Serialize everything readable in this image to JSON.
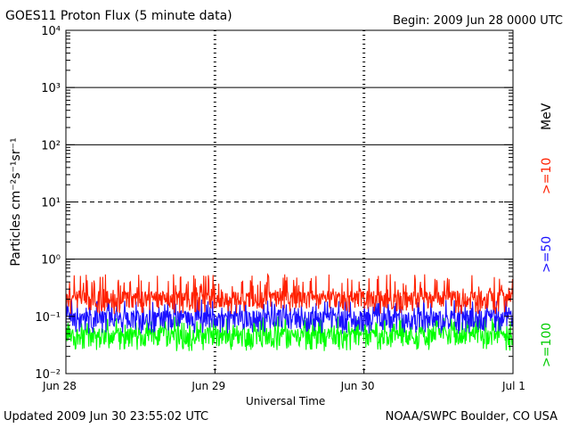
{
  "header": {
    "title": "GOES11 Proton Flux (5 minute data)",
    "begin": "Begin: 2009 Jun 28 0000 UTC"
  },
  "footer": {
    "updated": "Updated 2009 Jun 30 23:55:02 UTC",
    "credit": "NOAA/SWPC Boulder, CO USA"
  },
  "chart_data": {
    "type": "line",
    "title": "GOES11 Proton Flux (5 minute data)",
    "xlabel": "Universal Time",
    "ylabel": "Particles cm⁻²s⁻¹sr⁻¹",
    "yscale": "log",
    "ylim": [
      0.01,
      10000
    ],
    "y_ticks": [
      {
        "value": 0.01,
        "label": "10⁻²"
      },
      {
        "value": 0.1,
        "label": "10⁻¹"
      },
      {
        "value": 1,
        "label": "10⁰"
      },
      {
        "value": 10,
        "label": "10¹"
      },
      {
        "value": 100,
        "label": "10²"
      },
      {
        "value": 1000,
        "label": "10³"
      },
      {
        "value": 10000,
        "label": "10⁴"
      }
    ],
    "x_ticks": [
      "Jun 28",
      "Jun 29",
      "Jun 30",
      "Jul 1"
    ],
    "reference_lines": [
      {
        "value": 1,
        "style": "solid"
      },
      {
        "value": 10,
        "style": "dashed"
      },
      {
        "value": 100,
        "style": "solid"
      },
      {
        "value": 1000,
        "style": "solid"
      }
    ],
    "series": [
      {
        "name": ">=10",
        "color": "#ff2000",
        "baseline": 0.2,
        "spike_max": 0.55
      },
      {
        "name": ">=50",
        "color": "#1a10ff",
        "baseline": 0.09,
        "spike_max": 0.2
      },
      {
        "name": ">=100",
        "color": "#00ff00",
        "baseline": 0.045,
        "spike_max": 0.1
      }
    ],
    "legend_units": "MeV",
    "grid": false
  }
}
